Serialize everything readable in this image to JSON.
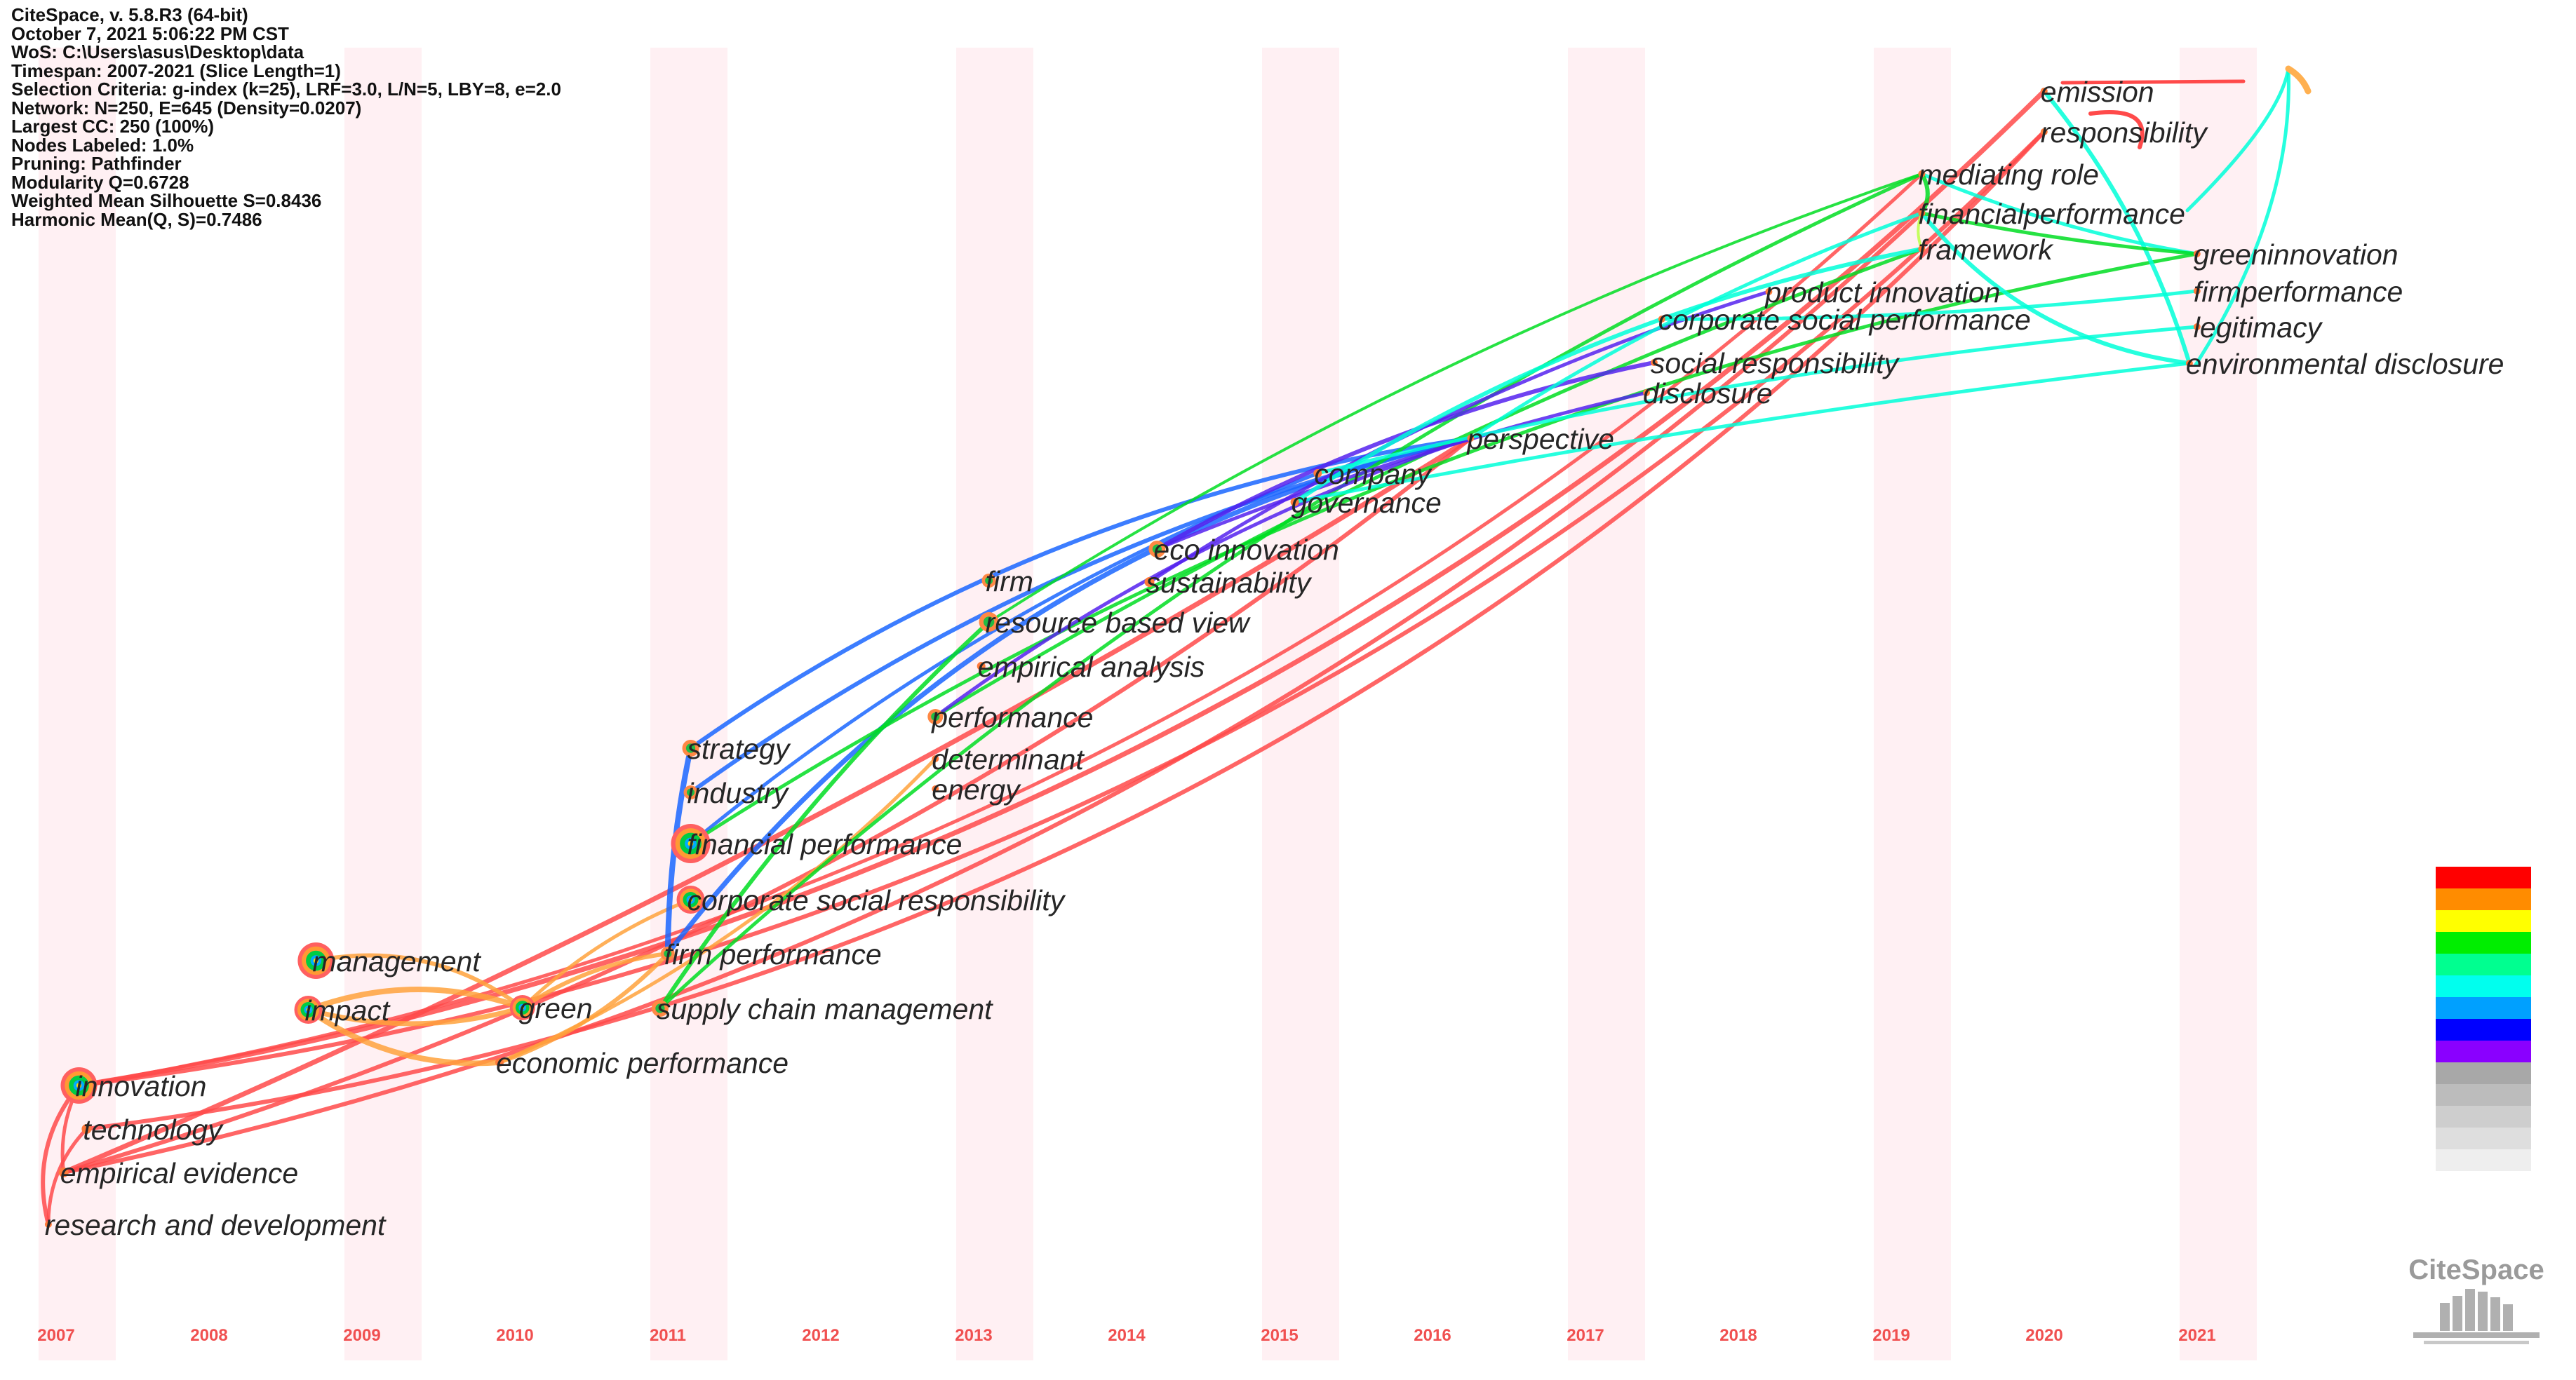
{
  "info_lines": [
    "CiteSpace, v. 5.8.R3 (64-bit)",
    "October 7, 2021 5:06:22 PM CST",
    "WoS: C:\\Users\\asus\\Desktop\\data",
    "Timespan: 2007-2021 (Slice Length=1)",
    "Selection Criteria: g-index (k=25), LRF=3.0, L/N=5, LBY=8, e=2.0",
    "Network: N=250, E=645 (Density=0.0207)",
    "Largest CC: 250 (100%)",
    "Nodes Labeled: 1.0%",
    "Pruning: Pathfinder",
    "Modularity Q=0.6728",
    "Weighted Mean Silhouette S=0.8436",
    "Harmonic Mean(Q, S)=0.7486"
  ],
  "years": [
    "2007",
    "2008",
    "2009",
    "2010",
    "2011",
    "2012",
    "2013",
    "2014",
    "2015",
    "2016",
    "2017",
    "2018",
    "2019",
    "2020",
    "2021"
  ],
  "stripe_color": "#fff0f3",
  "year_color": "#f05050",
  "keywords": [
    {
      "label": "innovation",
      "year": 2007.25,
      "yrow": 1548,
      "size": 26
    },
    {
      "label": "technology",
      "year": 2007.3,
      "yrow": 1610,
      "size": 7
    },
    {
      "label": "empirical evidence",
      "year": 2007.15,
      "yrow": 1672,
      "size": 7
    },
    {
      "label": "research and development",
      "year": 2007.05,
      "yrow": 1746,
      "size": 5
    },
    {
      "label": "management",
      "year": 2008.8,
      "yrow": 1370,
      "size": 26
    },
    {
      "label": "impact",
      "year": 2008.75,
      "yrow": 1440,
      "size": 20
    },
    {
      "label": "green",
      "year": 2010.15,
      "yrow": 1437,
      "size": 18
    },
    {
      "label": "economic performance",
      "year": 2010.0,
      "yrow": 1515,
      "size": 6
    },
    {
      "label": "strategy",
      "year": 2011.25,
      "yrow": 1067,
      "size": 12
    },
    {
      "label": "industry",
      "year": 2011.25,
      "yrow": 1130,
      "size": 10
    },
    {
      "label": "financial performance",
      "year": 2011.25,
      "yrow": 1203,
      "size": 28
    },
    {
      "label": "corporate social responsibility",
      "year": 2011.25,
      "yrow": 1283,
      "size": 20
    },
    {
      "label": "firm performance",
      "year": 2011.1,
      "yrow": 1360,
      "size": 10
    },
    {
      "label": "supply chain management",
      "year": 2011.05,
      "yrow": 1438,
      "size": 12
    },
    {
      "label": "performance",
      "year": 2012.85,
      "yrow": 1022,
      "size": 11
    },
    {
      "label": "determinant",
      "year": 2012.85,
      "yrow": 1082,
      "size": 4
    },
    {
      "label": "energy",
      "year": 2012.85,
      "yrow": 1125,
      "size": 0
    },
    {
      "label": "firm",
      "year": 2013.2,
      "yrow": 828,
      "size": 10
    },
    {
      "label": "resource based view",
      "year": 2013.2,
      "yrow": 887,
      "size": 14
    },
    {
      "label": "empirical analysis",
      "year": 2013.15,
      "yrow": 950,
      "size": 6
    },
    {
      "label": "eco innovation",
      "year": 2014.3,
      "yrow": 783,
      "size": 12
    },
    {
      "label": "sustainability",
      "year": 2014.25,
      "yrow": 830,
      "size": 7
    },
    {
      "label": "company",
      "year": 2015.35,
      "yrow": 675,
      "size": 6
    },
    {
      "label": "governance",
      "year": 2015.2,
      "yrow": 716,
      "size": 6
    },
    {
      "label": "perspective",
      "year": 2016.35,
      "yrow": 625,
      "size": 4
    },
    {
      "label": "corporate social performance",
      "year": 2017.6,
      "yrow": 455,
      "size": 0
    },
    {
      "label": "social responsibility",
      "year": 2017.55,
      "yrow": 517,
      "size": 5
    },
    {
      "label": "disclosure",
      "year": 2017.5,
      "yrow": 560,
      "size": 5
    },
    {
      "label": "product innovation",
      "year": 2018.3,
      "yrow": 416,
      "size": 0
    },
    {
      "label": "mediating role",
      "year": 2019.3,
      "yrow": 248,
      "size": 0
    },
    {
      "label": "financialperformance",
      "year": 2019.3,
      "yrow": 304,
      "size": 4
    },
    {
      "label": "framework",
      "year": 2019.3,
      "yrow": 355,
      "size": 0
    },
    {
      "label": "emission",
      "year": 2020.1,
      "yrow": 130,
      "size": 0
    },
    {
      "label": "responsibility",
      "year": 2020.1,
      "yrow": 188,
      "size": 0
    },
    {
      "label": "greeninnovation",
      "year": 2021.1,
      "yrow": 362,
      "size": 0
    },
    {
      "label": "firmperformance",
      "year": 2021.1,
      "yrow": 415,
      "size": 0
    },
    {
      "label": "legitimacy",
      "year": 2021.1,
      "yrow": 466,
      "size": 0
    },
    {
      "label": "environmental disclosure",
      "year": 2021.05,
      "yrow": 518,
      "size": 0
    }
  ],
  "legend_colors": [
    "#ff0000",
    "#ff8c00",
    "#ffff00",
    "#00ee00",
    "#00ff90",
    "#00ffee",
    "#00a0ff",
    "#0000ff",
    "#8a00ff",
    "#a8a8a8",
    "#bcbcbc",
    "#cecece",
    "#dedede",
    "#eeeeee"
  ],
  "logo_text": "CiteSpace"
}
